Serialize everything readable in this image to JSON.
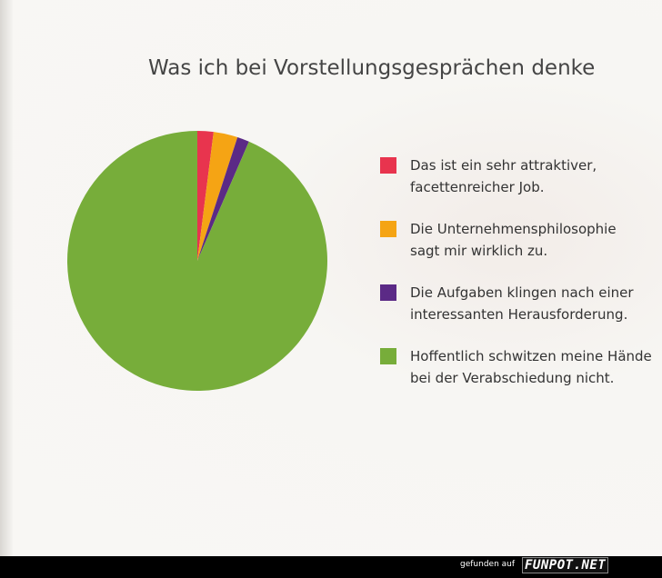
{
  "chart_data": {
    "type": "pie",
    "title": "Was ich bei Vorstellungsgesprächen denke",
    "categories": [
      "Das ist ein sehr attraktiver, facettenreicher Job.",
      "Die Unternehmensphilosophie sagt mir wirklich zu.",
      "Die Aufgaben klingen nach einer interessanten Herausforderung.",
      "Hoffentlich schwitzen meine Hände bei der Verabschiedung nicht."
    ],
    "values": [
      2,
      3,
      1.5,
      93.5
    ],
    "colors": [
      "#e8344e",
      "#f5a414",
      "#5b2a86",
      "#77ad3a"
    ],
    "legend_position": "right",
    "legend": [
      {
        "line1": "Das ist ein sehr attraktiver,",
        "line2": "facettenreicher Job."
      },
      {
        "line1": "Die Unternehmensphilosophie",
        "line2": "sagt mir wirklich zu."
      },
      {
        "line1": "Die Aufgaben klingen nach einer",
        "line2": "interessanten Herausforderung."
      },
      {
        "line1": "Hoffentlich schwitzen meine Hände",
        "line2": "bei der Verabschiedung nicht."
      }
    ]
  },
  "footer": {
    "label": "gefunden auf",
    "brand": "FUNPOT.NET"
  }
}
